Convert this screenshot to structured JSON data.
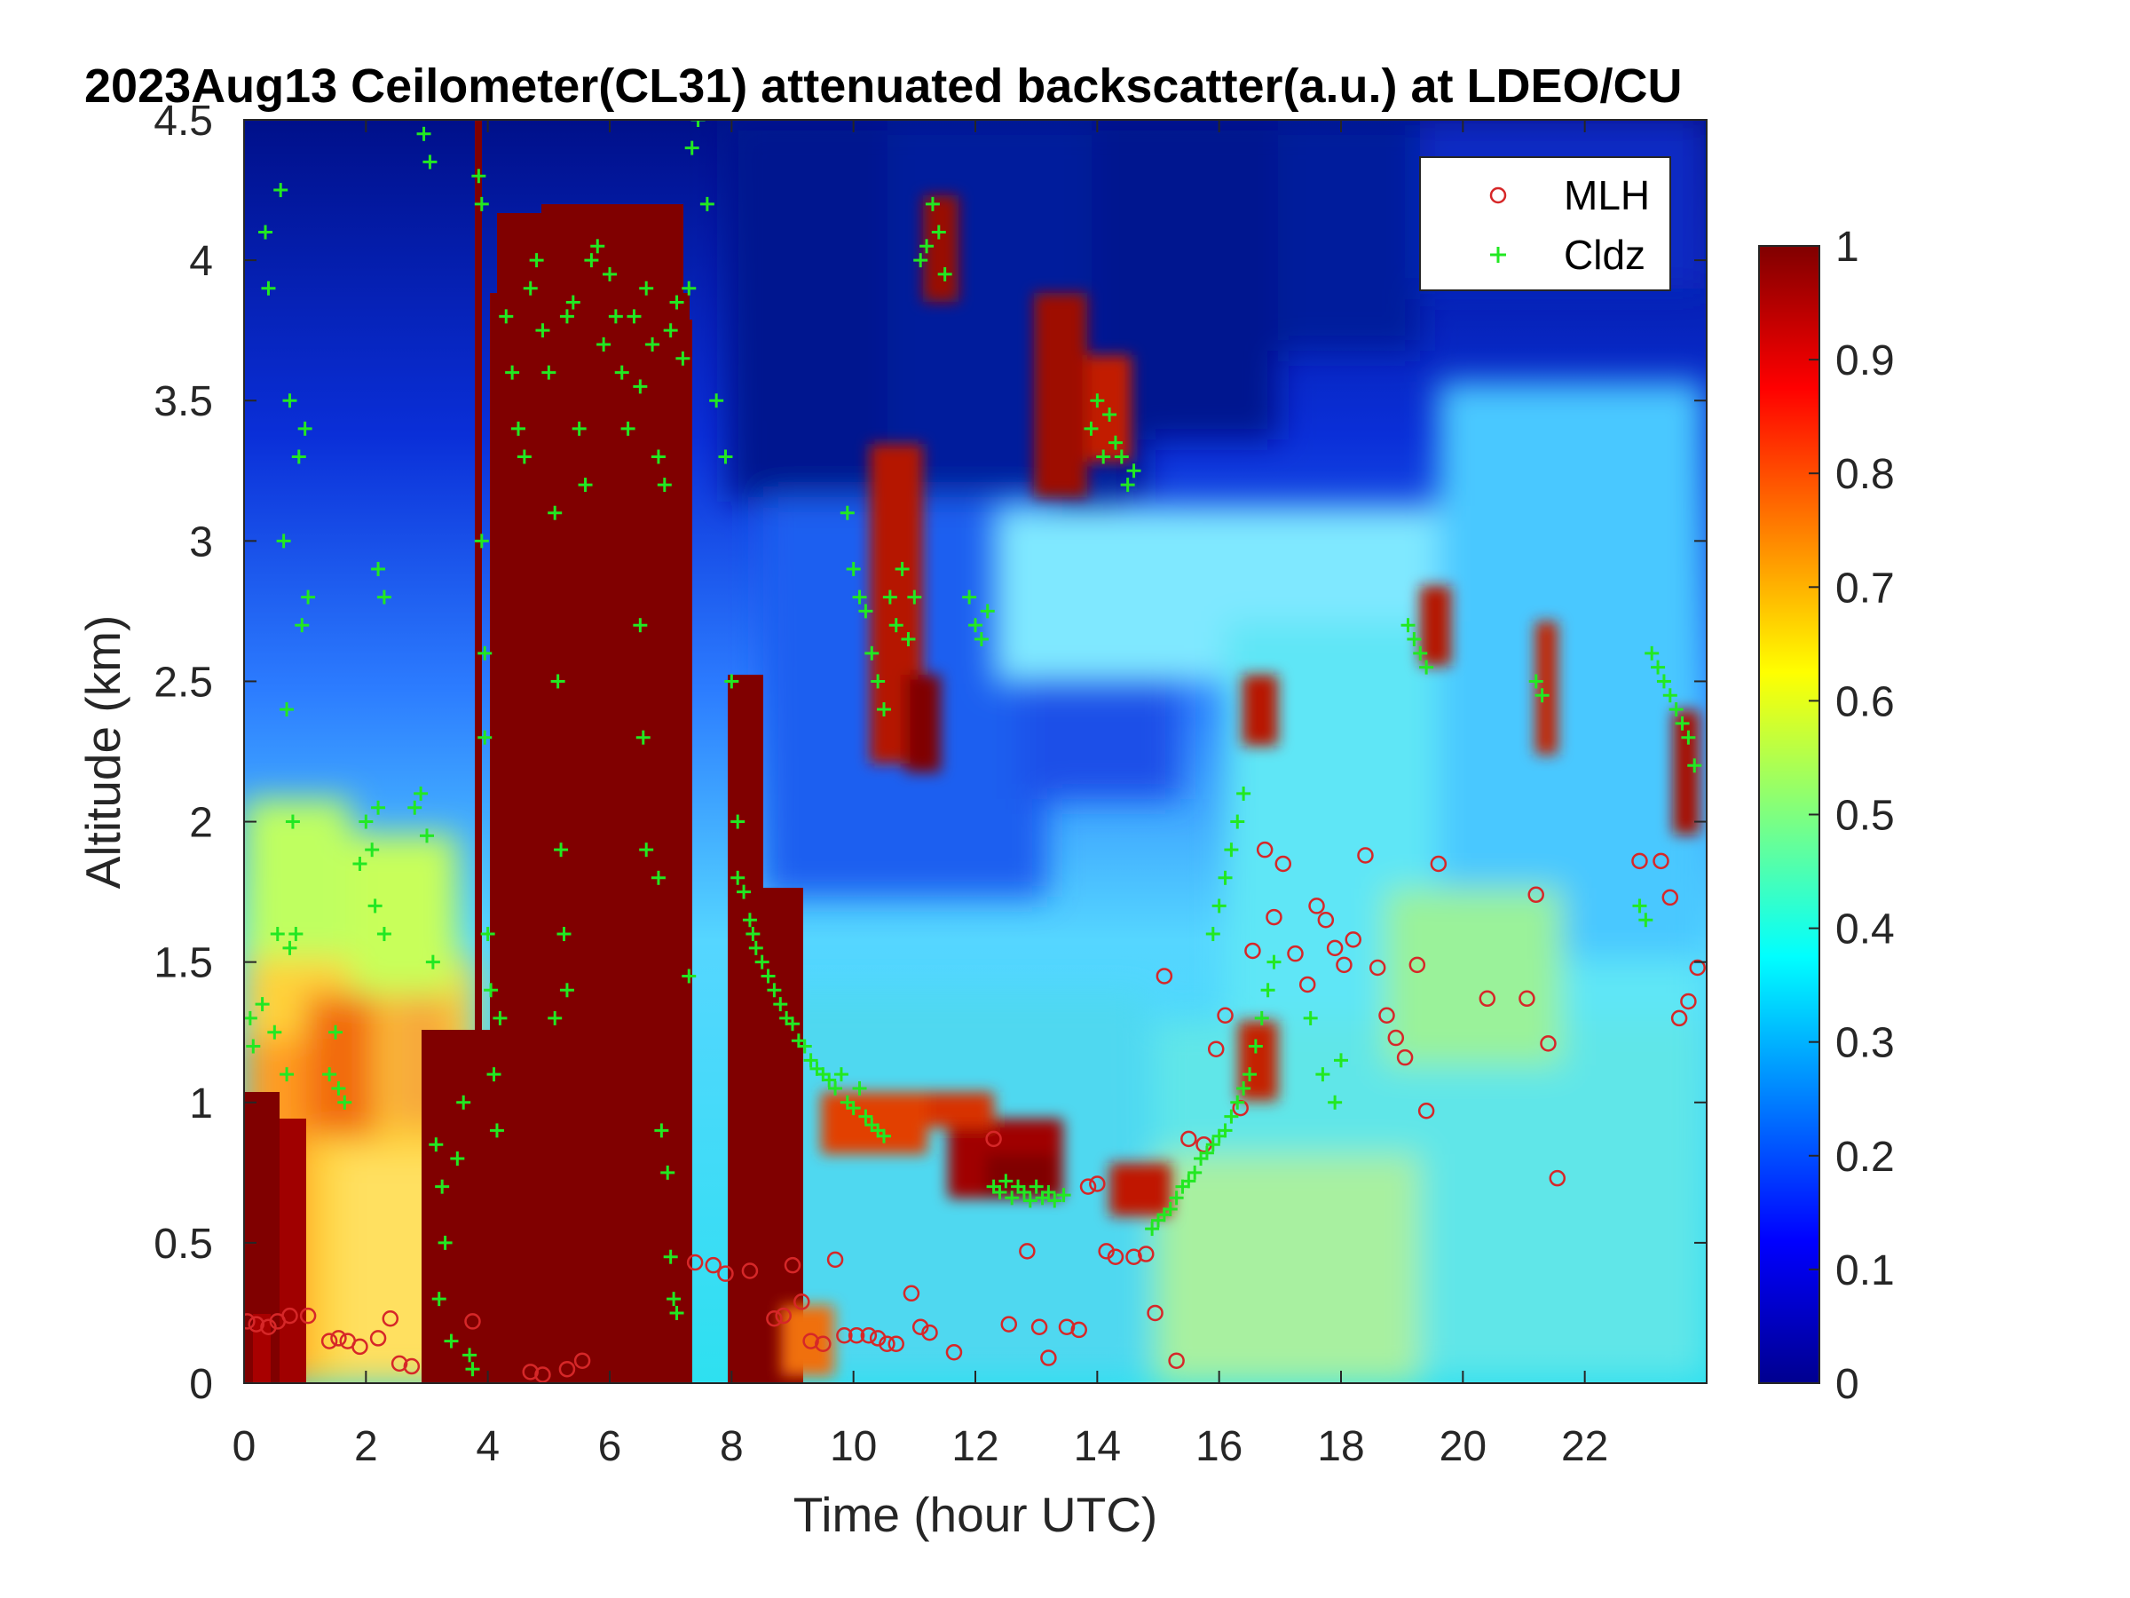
{
  "chart_data": {
    "type": "heatmap",
    "title": "2023Aug13 Ceilometer(CL31) attenuated backscatter(a.u.) at LDEO/CU",
    "xlabel": "Time (hour UTC)",
    "ylabel": "Altitude (km)",
    "xlim": [
      0,
      24
    ],
    "ylim": [
      0,
      4.5
    ],
    "xticks": [
      "0",
      "2",
      "4",
      "6",
      "8",
      "10",
      "12",
      "14",
      "16",
      "18",
      "20",
      "22"
    ],
    "yticks": [
      "0",
      "0.5",
      "1",
      "1.5",
      "2",
      "2.5",
      "3",
      "3.5",
      "4",
      "4.5"
    ],
    "colorbar": {
      "colormap": "jet",
      "range": [
        0,
        1
      ],
      "ticks": [
        "0",
        "0.1",
        "0.2",
        "0.3",
        "0.4",
        "0.5",
        "0.6",
        "0.7",
        "0.8",
        "0.9",
        "1"
      ]
    },
    "legend": {
      "placement": "top-right",
      "entries": [
        "MLH",
        "Cldz"
      ]
    },
    "series": [
      {
        "name": "MLH",
        "marker": "circle",
        "color": "#d62728",
        "points": [
          [
            0.05,
            0.22
          ],
          [
            0.2,
            0.21
          ],
          [
            0.4,
            0.2
          ],
          [
            0.55,
            0.22
          ],
          [
            0.75,
            0.24
          ],
          [
            1.05,
            0.24
          ],
          [
            1.4,
            0.15
          ],
          [
            1.55,
            0.16
          ],
          [
            1.7,
            0.15
          ],
          [
            1.9,
            0.13
          ],
          [
            2.2,
            0.16
          ],
          [
            2.4,
            0.23
          ],
          [
            2.55,
            0.07
          ],
          [
            2.75,
            0.06
          ],
          [
            3.75,
            0.22
          ],
          [
            4.7,
            0.04
          ],
          [
            4.9,
            0.03
          ],
          [
            5.3,
            0.05
          ],
          [
            5.55,
            0.08
          ],
          [
            7.4,
            0.43
          ],
          [
            7.7,
            0.42
          ],
          [
            7.9,
            0.39
          ],
          [
            8.3,
            0.4
          ],
          [
            8.7,
            0.23
          ],
          [
            8.85,
            0.24
          ],
          [
            9.0,
            0.42
          ],
          [
            9.15,
            0.29
          ],
          [
            9.3,
            0.15
          ],
          [
            9.5,
            0.14
          ],
          [
            9.7,
            0.44
          ],
          [
            9.85,
            0.17
          ],
          [
            10.05,
            0.17
          ],
          [
            10.25,
            0.17
          ],
          [
            10.4,
            0.16
          ],
          [
            10.55,
            0.14
          ],
          [
            10.7,
            0.14
          ],
          [
            10.95,
            0.32
          ],
          [
            11.1,
            0.2
          ],
          [
            11.25,
            0.18
          ],
          [
            11.65,
            0.11
          ],
          [
            12.3,
            0.87
          ],
          [
            12.55,
            0.21
          ],
          [
            12.85,
            0.47
          ],
          [
            13.05,
            0.2
          ],
          [
            13.2,
            0.09
          ],
          [
            13.5,
            0.2
          ],
          [
            13.7,
            0.19
          ],
          [
            13.85,
            0.7
          ],
          [
            14.0,
            0.71
          ],
          [
            14.15,
            0.47
          ],
          [
            14.3,
            0.45
          ],
          [
            14.6,
            0.45
          ],
          [
            14.8,
            0.46
          ],
          [
            14.95,
            0.25
          ],
          [
            15.1,
            1.45
          ],
          [
            15.3,
            0.08
          ],
          [
            15.5,
            0.87
          ],
          [
            15.75,
            0.85
          ],
          [
            15.95,
            1.19
          ],
          [
            16.1,
            1.31
          ],
          [
            16.35,
            0.98
          ],
          [
            16.55,
            1.54
          ],
          [
            16.75,
            1.9
          ],
          [
            16.9,
            1.66
          ],
          [
            17.05,
            1.85
          ],
          [
            17.25,
            1.53
          ],
          [
            17.45,
            1.42
          ],
          [
            17.6,
            1.7
          ],
          [
            17.75,
            1.65
          ],
          [
            17.9,
            1.55
          ],
          [
            18.05,
            1.49
          ],
          [
            18.2,
            1.58
          ],
          [
            18.4,
            1.88
          ],
          [
            18.6,
            1.48
          ],
          [
            18.75,
            1.31
          ],
          [
            18.9,
            1.23
          ],
          [
            19.05,
            1.16
          ],
          [
            19.25,
            1.49
          ],
          [
            19.4,
            0.97
          ],
          [
            19.6,
            1.85
          ],
          [
            20.4,
            1.37
          ],
          [
            21.05,
            1.37
          ],
          [
            21.2,
            1.74
          ],
          [
            21.4,
            1.21
          ],
          [
            21.55,
            0.73
          ],
          [
            22.9,
            1.86
          ],
          [
            23.25,
            1.86
          ],
          [
            23.4,
            1.73
          ],
          [
            23.55,
            1.3
          ],
          [
            23.7,
            1.36
          ],
          [
            23.85,
            1.48
          ]
        ]
      },
      {
        "name": "Cldz",
        "marker": "plus",
        "color": "#22e822",
        "points": [
          [
            0.1,
            1.3
          ],
          [
            0.15,
            1.2
          ],
          [
            0.3,
            1.35
          ],
          [
            0.5,
            1.25
          ],
          [
            0.35,
            4.1
          ],
          [
            0.4,
            3.9
          ],
          [
            0.6,
            4.25
          ],
          [
            0.65,
            3.0
          ],
          [
            0.7,
            2.4
          ],
          [
            0.75,
            3.5
          ],
          [
            0.8,
            2.0
          ],
          [
            0.85,
            1.6
          ],
          [
            0.9,
            3.3
          ],
          [
            0.95,
            2.7
          ],
          [
            1.0,
            3.4
          ],
          [
            1.05,
            2.8
          ],
          [
            0.55,
            1.6
          ],
          [
            0.7,
            1.1
          ],
          [
            0.75,
            1.55
          ],
          [
            1.4,
            1.1
          ],
          [
            1.55,
            1.05
          ],
          [
            1.65,
            1.0
          ],
          [
            1.5,
            1.25
          ],
          [
            1.9,
            1.85
          ],
          [
            2.0,
            2.0
          ],
          [
            2.1,
            1.9
          ],
          [
            2.15,
            1.7
          ],
          [
            2.2,
            2.05
          ],
          [
            2.2,
            2.9
          ],
          [
            2.3,
            2.8
          ],
          [
            2.3,
            1.6
          ],
          [
            2.8,
            2.05
          ],
          [
            2.9,
            2.1
          ],
          [
            3.0,
            1.95
          ],
          [
            2.95,
            4.45
          ],
          [
            3.05,
            4.35
          ],
          [
            3.1,
            1.5
          ],
          [
            3.15,
            0.85
          ],
          [
            3.25,
            0.7
          ],
          [
            3.3,
            0.5
          ],
          [
            3.2,
            0.3
          ],
          [
            3.4,
            0.15
          ],
          [
            3.5,
            0.8
          ],
          [
            3.6,
            1.0
          ],
          [
            3.7,
            0.1
          ],
          [
            3.75,
            0.05
          ],
          [
            3.85,
            4.3
          ],
          [
            3.9,
            4.2
          ],
          [
            3.9,
            3.0
          ],
          [
            3.95,
            2.6
          ],
          [
            3.95,
            2.3
          ],
          [
            4.0,
            1.6
          ],
          [
            4.05,
            1.4
          ],
          [
            4.1,
            1.1
          ],
          [
            4.15,
            0.9
          ],
          [
            4.2,
            1.3
          ],
          [
            4.3,
            3.8
          ],
          [
            4.4,
            3.6
          ],
          [
            4.5,
            3.4
          ],
          [
            4.6,
            3.3
          ],
          [
            4.7,
            3.9
          ],
          [
            4.8,
            4.0
          ],
          [
            4.9,
            3.75
          ],
          [
            5.0,
            3.6
          ],
          [
            5.1,
            3.1
          ],
          [
            5.15,
            2.5
          ],
          [
            5.2,
            1.9
          ],
          [
            5.25,
            1.6
          ],
          [
            5.3,
            1.4
          ],
          [
            5.1,
            1.3
          ],
          [
            5.3,
            3.8
          ],
          [
            5.4,
            3.85
          ],
          [
            5.5,
            3.4
          ],
          [
            5.6,
            3.2
          ],
          [
            5.7,
            4.0
          ],
          [
            5.8,
            4.05
          ],
          [
            5.9,
            3.7
          ],
          [
            6.0,
            3.95
          ],
          [
            6.1,
            3.8
          ],
          [
            6.2,
            3.6
          ],
          [
            6.3,
            3.4
          ],
          [
            6.4,
            3.8
          ],
          [
            6.5,
            3.55
          ],
          [
            6.6,
            3.9
          ],
          [
            6.7,
            3.7
          ],
          [
            6.8,
            3.3
          ],
          [
            6.9,
            3.2
          ],
          [
            7.0,
            3.75
          ],
          [
            7.1,
            3.85
          ],
          [
            7.2,
            3.65
          ],
          [
            7.3,
            3.9
          ],
          [
            6.5,
            2.7
          ],
          [
            6.55,
            2.3
          ],
          [
            6.6,
            1.9
          ],
          [
            6.8,
            1.8
          ],
          [
            6.85,
            0.9
          ],
          [
            6.95,
            0.75
          ],
          [
            7.0,
            0.45
          ],
          [
            7.05,
            0.3
          ],
          [
            7.1,
            0.25
          ],
          [
            7.3,
            1.45
          ],
          [
            7.35,
            4.4
          ],
          [
            7.45,
            4.5
          ],
          [
            7.6,
            4.2
          ],
          [
            7.75,
            3.5
          ],
          [
            7.9,
            3.3
          ],
          [
            8.0,
            2.5
          ],
          [
            8.1,
            2.0
          ],
          [
            8.1,
            1.8
          ],
          [
            8.2,
            1.75
          ],
          [
            8.3,
            1.65
          ],
          [
            8.35,
            1.6
          ],
          [
            8.4,
            1.55
          ],
          [
            8.5,
            1.5
          ],
          [
            8.6,
            1.45
          ],
          [
            8.7,
            1.4
          ],
          [
            8.8,
            1.35
          ],
          [
            8.9,
            1.3
          ],
          [
            9.0,
            1.28
          ],
          [
            9.1,
            1.22
          ],
          [
            9.2,
            1.2
          ],
          [
            9.3,
            1.15
          ],
          [
            9.4,
            1.12
          ],
          [
            9.5,
            1.1
          ],
          [
            9.6,
            1.08
          ],
          [
            9.7,
            1.05
          ],
          [
            9.8,
            1.1
          ],
          [
            9.9,
            1.0
          ],
          [
            10.0,
            0.98
          ],
          [
            10.1,
            1.05
          ],
          [
            10.2,
            0.95
          ],
          [
            10.3,
            0.92
          ],
          [
            10.4,
            0.9
          ],
          [
            10.5,
            0.88
          ],
          [
            9.9,
            3.1
          ],
          [
            10.0,
            2.9
          ],
          [
            10.1,
            2.8
          ],
          [
            10.2,
            2.75
          ],
          [
            10.3,
            2.6
          ],
          [
            10.4,
            2.5
          ],
          [
            10.5,
            2.4
          ],
          [
            10.6,
            2.8
          ],
          [
            10.7,
            2.7
          ],
          [
            10.8,
            2.9
          ],
          [
            10.9,
            2.65
          ],
          [
            11.0,
            2.8
          ],
          [
            11.1,
            4.0
          ],
          [
            11.2,
            4.05
          ],
          [
            11.3,
            4.2
          ],
          [
            11.4,
            4.1
          ],
          [
            11.5,
            3.95
          ],
          [
            11.9,
            2.8
          ],
          [
            12.0,
            2.7
          ],
          [
            12.1,
            2.65
          ],
          [
            12.2,
            2.75
          ],
          [
            12.3,
            0.7
          ],
          [
            12.4,
            0.68
          ],
          [
            12.5,
            0.72
          ],
          [
            12.6,
            0.66
          ],
          [
            12.7,
            0.7
          ],
          [
            12.8,
            0.68
          ],
          [
            12.9,
            0.65
          ],
          [
            13.0,
            0.7
          ],
          [
            13.1,
            0.66
          ],
          [
            13.2,
            0.68
          ],
          [
            13.3,
            0.65
          ],
          [
            13.45,
            0.67
          ],
          [
            13.9,
            3.4
          ],
          [
            14.0,
            3.5
          ],
          [
            14.1,
            3.3
          ],
          [
            14.2,
            3.45
          ],
          [
            14.3,
            3.35
          ],
          [
            14.4,
            3.3
          ],
          [
            14.5,
            3.2
          ],
          [
            14.6,
            3.25
          ],
          [
            14.9,
            0.55
          ],
          [
            15.0,
            0.58
          ],
          [
            15.1,
            0.6
          ],
          [
            15.2,
            0.62
          ],
          [
            15.3,
            0.66
          ],
          [
            15.4,
            0.7
          ],
          [
            15.5,
            0.72
          ],
          [
            15.6,
            0.75
          ],
          [
            15.7,
            0.8
          ],
          [
            15.8,
            0.82
          ],
          [
            15.9,
            0.85
          ],
          [
            16.0,
            0.88
          ],
          [
            16.1,
            0.9
          ],
          [
            16.2,
            0.95
          ],
          [
            16.3,
            1.0
          ],
          [
            16.4,
            1.05
          ],
          [
            16.5,
            1.1
          ],
          [
            16.6,
            1.2
          ],
          [
            16.7,
            1.3
          ],
          [
            16.8,
            1.4
          ],
          [
            16.9,
            1.5
          ],
          [
            15.9,
            1.6
          ],
          [
            16.0,
            1.7
          ],
          [
            16.1,
            1.8
          ],
          [
            16.2,
            1.9
          ],
          [
            16.3,
            2.0
          ],
          [
            16.4,
            2.1
          ],
          [
            17.5,
            1.3
          ],
          [
            17.7,
            1.1
          ],
          [
            17.9,
            1.0
          ],
          [
            18.0,
            1.15
          ],
          [
            19.1,
            2.7
          ],
          [
            19.2,
            2.65
          ],
          [
            19.3,
            2.6
          ],
          [
            19.4,
            2.55
          ],
          [
            21.2,
            2.5
          ],
          [
            21.3,
            2.45
          ],
          [
            22.9,
            1.7
          ],
          [
            23.0,
            1.65
          ],
          [
            23.1,
            2.6
          ],
          [
            23.2,
            2.55
          ],
          [
            23.3,
            2.5
          ],
          [
            23.4,
            2.45
          ],
          [
            23.5,
            2.4
          ],
          [
            23.6,
            2.35
          ],
          [
            23.7,
            2.3
          ],
          [
            23.8,
            2.2
          ]
        ]
      }
    ]
  }
}
